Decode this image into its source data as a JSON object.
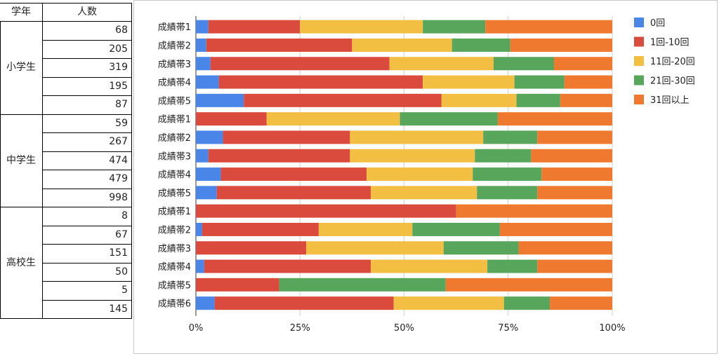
{
  "table": {
    "headers": {
      "grade": "学年",
      "count": "人数"
    },
    "groups": [
      {
        "name": "小学生",
        "counts": [
          "68",
          "205",
          "319",
          "195",
          "87"
        ]
      },
      {
        "name": "中学生",
        "counts": [
          "59",
          "267",
          "474",
          "479",
          "998"
        ]
      },
      {
        "name": "高校生",
        "counts": [
          "8",
          "67",
          "151",
          "50",
          "5",
          "145"
        ]
      }
    ]
  },
  "chart_data": {
    "type": "bar",
    "orientation": "horizontal",
    "stacked": "percent",
    "categories": [
      "成績帯1",
      "成績帯2",
      "成績帯3",
      "成績帯4",
      "成績帯5",
      "成績帯1",
      "成績帯2",
      "成績帯3",
      "成績帯4",
      "成績帯5",
      "成績帯1",
      "成績帯2",
      "成績帯3",
      "成績帯4",
      "成績帯5",
      "成績帯6"
    ],
    "series": [
      {
        "name": "0回",
        "color": "#4a86e8",
        "values": [
          3,
          2.5,
          3.5,
          5.5,
          11.5,
          0,
          6.5,
          3,
          6,
          5,
          0,
          1.5,
          0,
          2,
          0,
          4.5
        ]
      },
      {
        "name": "1回-10回",
        "color": "#db4b3d",
        "values": [
          22,
          35,
          43,
          49,
          47.5,
          17,
          30.5,
          34,
          35,
          37,
          62.5,
          28,
          26.5,
          40,
          20,
          43
        ]
      },
      {
        "name": "11回-20回",
        "color": "#f2bf42",
        "values": [
          29.5,
          24,
          25,
          22,
          18,
          32,
          32,
          30,
          25.5,
          25.5,
          0,
          22.5,
          33,
          28,
          0,
          26.5
        ]
      },
      {
        "name": "21回-30回",
        "color": "#58a55c",
        "values": [
          15,
          14,
          14.5,
          12,
          10.5,
          23.5,
          13,
          13.5,
          16.5,
          14.5,
          0,
          21,
          18,
          12,
          40,
          11
        ]
      },
      {
        "name": "31回以上",
        "color": "#ef7a2f",
        "values": [
          30.5,
          24.5,
          14,
          11.5,
          12.5,
          27.5,
          18,
          19.5,
          17,
          18,
          37.5,
          27,
          22.5,
          18,
          40,
          15
        ]
      }
    ],
    "x_ticks": [
      "0%",
      "25%",
      "50%",
      "75%",
      "100%"
    ],
    "xlim": [
      0,
      100
    ],
    "grid": true,
    "legend": "right"
  }
}
